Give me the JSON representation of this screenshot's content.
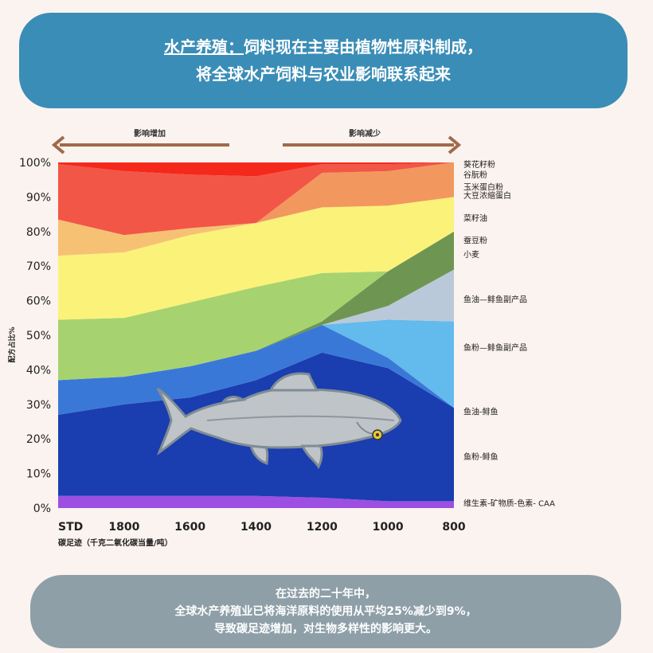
{
  "header": {
    "highlight": "水产养殖：",
    "line1": "饲料现在主要由植物性原料制成，",
    "line2": "将全球水产饲料与农业影响联系起来"
  },
  "arrows": {
    "left_label": "影响增加",
    "right_label": "影响减少",
    "color": "#a06a4a"
  },
  "chart_data": {
    "type": "area",
    "stacked": true,
    "x": [
      "STD",
      "1800",
      "1600",
      "1400",
      "1200",
      "1000",
      "800"
    ],
    "xlabel": "碳足迹（千克二氧化碳当量/吨）",
    "ylabel": "配方占比%",
    "ylim": [
      0,
      100
    ],
    "yticks": [
      "0%",
      "10%",
      "20%",
      "30%",
      "40%",
      "50%",
      "60%",
      "70%",
      "80%",
      "90%",
      "100%"
    ],
    "series": [
      {
        "name": "维生素-矿物质-色素- CAA",
        "color": "#9c4fe0",
        "values": [
          3.5,
          3.5,
          3.5,
          3.5,
          3,
          2,
          2
        ]
      },
      {
        "name": "鱼粉-鲱鱼",
        "color": "#1a3db0",
        "values": [
          23.5,
          26.5,
          28.5,
          33.5,
          42,
          38.5,
          27
        ]
      },
      {
        "name": "鱼油-鲱鱼",
        "color": "#3a78d8",
        "values": [
          10,
          8,
          9,
          8.5,
          8,
          3,
          0
        ]
      },
      {
        "name": "鱼粉—鲱鱼副产品",
        "color": "#63baec",
        "values": [
          0,
          0,
          0,
          0,
          0,
          11,
          25
        ]
      },
      {
        "name": "鱼油—鲱鱼副产品",
        "color": "#b9c9d9",
        "values": [
          0,
          0,
          0,
          0,
          0,
          4,
          15
        ]
      },
      {
        "name": "小麦",
        "color": "#6e9652",
        "values": [
          0,
          0,
          0,
          0,
          1,
          10,
          11
        ]
      },
      {
        "name": "蚕豆粉",
        "color": "#a6d370",
        "values": [
          17.5,
          17,
          18.5,
          18.5,
          14,
          0,
          0
        ]
      },
      {
        "name": "菜籽油",
        "color": "#fbf27a",
        "values": [
          18.5,
          19,
          19.5,
          18.5,
          19,
          19,
          10
        ]
      },
      {
        "name": "大豆浓缩蛋白",
        "color": "#f7c174",
        "values": [
          10.5,
          5,
          2,
          0,
          0,
          0,
          0
        ]
      },
      {
        "name": "玉米蛋白粉",
        "color": "#f2985f",
        "values": [
          0,
          0,
          0,
          0,
          10,
          10,
          10
        ]
      },
      {
        "name": "谷朊粉",
        "color": "#f25646",
        "values": [
          16,
          18.5,
          15.5,
          13.5,
          2.5,
          2,
          0
        ]
      },
      {
        "name": "葵花籽粉",
        "color": "#f5281c",
        "values": [
          0.5,
          2.5,
          3.5,
          4,
          0.5,
          0.5,
          0
        ]
      }
    ],
    "legend_labels": [
      {
        "text": "葵花籽粉",
        "y": 99.5
      },
      {
        "text": "谷朊粉",
        "y": 96.5
      },
      {
        "text": "玉米蛋白粉",
        "y": 93
      },
      {
        "text": "大豆浓缩蛋白",
        "y": 90.5
      },
      {
        "text": "菜籽油",
        "y": 84
      },
      {
        "text": "蚕豆粉",
        "y": 77.5
      },
      {
        "text": "小麦",
        "y": 73.5
      },
      {
        "text": "鱼油—鲱鱼副产品",
        "y": 60.5
      },
      {
        "text": "鱼粉—鲱鱼副产品",
        "y": 46.5
      },
      {
        "text": "鱼油-鲱鱼",
        "y": 28
      },
      {
        "text": "鱼粉-鲱鱼",
        "y": 15
      },
      {
        "text": "维生素-矿物质-色素- CAA",
        "y": 1.5
      }
    ]
  },
  "footer": {
    "line1": "在过去的二十年中，",
    "line2": "全球水产养殖业已将海洋原料的使用从平均25%减少到9%，",
    "line3": "导致碳足迹增加，对生物多样性的影响更大。"
  }
}
